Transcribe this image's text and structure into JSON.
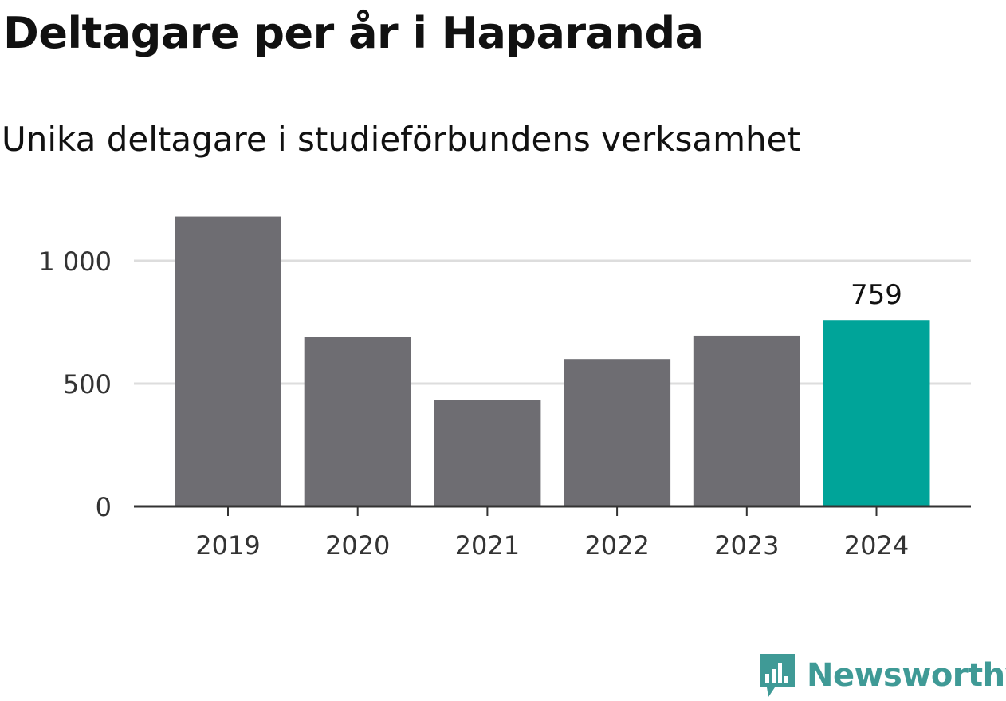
{
  "header": {
    "title": "Deltagare per år i Haparanda",
    "subtitle": "Unika deltagare i studieförbundens verksamhet"
  },
  "chart_data": {
    "type": "bar",
    "categories": [
      "2019",
      "2020",
      "2021",
      "2022",
      "2023",
      "2024"
    ],
    "values": [
      1180,
      690,
      435,
      600,
      695,
      759
    ],
    "ylim": [
      0,
      1250
    ],
    "yticks": [
      0,
      500,
      1000
    ],
    "ytick_labels": [
      "0",
      "500",
      "1 000"
    ],
    "grid": true,
    "highlight": {
      "index": 5,
      "label": "759"
    },
    "colors": {
      "bar": "#6e6d72",
      "highlight": "#00a499",
      "grid": "#dddddd",
      "axis": "#333333"
    }
  },
  "logo": {
    "text": "Newsworthy",
    "icon": "newsworthy-chart-bubble-icon",
    "color": "#3f9a96"
  }
}
